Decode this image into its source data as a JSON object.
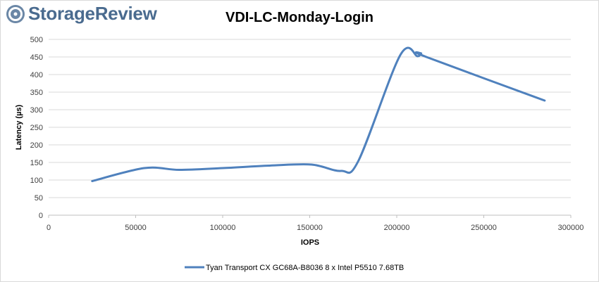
{
  "brand": {
    "name": "StorageReview"
  },
  "chart_data": {
    "type": "line",
    "title": "VDI-LC-Monday-Login",
    "xlabel": "IOPS",
    "ylabel": "Latency (µs)",
    "xlim": [
      0,
      300000
    ],
    "ylim": [
      0,
      500
    ],
    "xticks": [
      0,
      50000,
      100000,
      150000,
      200000,
      250000,
      300000
    ],
    "yticks": [
      0,
      50,
      100,
      150,
      200,
      250,
      300,
      350,
      400,
      450,
      500
    ],
    "grid": "horizontal",
    "legend": "bottom",
    "series": [
      {
        "name": "Tyan Transport CX GC68A-B8036 8 x Intel P5510 7.68TB",
        "color": "#4f81bd",
        "x": [
          25000,
          55000,
          75000,
          100000,
          127000,
          151000,
          168000,
          178000,
          202000,
          212000,
          214000,
          217000,
          285000
        ],
        "y": [
          97,
          134,
          129,
          134,
          141,
          144,
          126,
          155,
          455,
          452,
          460,
          450,
          326
        ]
      }
    ]
  }
}
